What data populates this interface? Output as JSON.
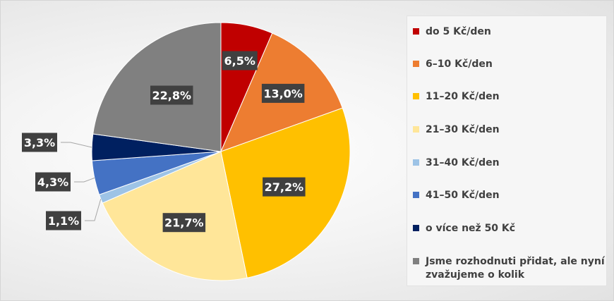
{
  "chart_data": {
    "type": "pie",
    "categories": [
      "do 5 Kč/den",
      "6–10 Kč/den",
      "11–20 Kč/den",
      "21–30 Kč/den",
      "31–40 Kč/den",
      "41–50 Kč/den",
      "o více než 50 Kč",
      "Jsme rozhodnuti přidat, ale nyní zvažujeme o kolik"
    ],
    "values": [
      6.5,
      13.0,
      27.2,
      21.7,
      1.1,
      4.3,
      3.3,
      22.8
    ],
    "data_labels": [
      "6,5%",
      "13,0%",
      "27,2%",
      "21,7%",
      "1,1%",
      "4,3%",
      "3,3%",
      "22,8%"
    ],
    "colors": [
      "#c00000",
      "#ed7d31",
      "#ffc000",
      "#ffe699",
      "#9dc3e6",
      "#4472c4",
      "#002060",
      "#808080"
    ],
    "legend_position": "right"
  }
}
